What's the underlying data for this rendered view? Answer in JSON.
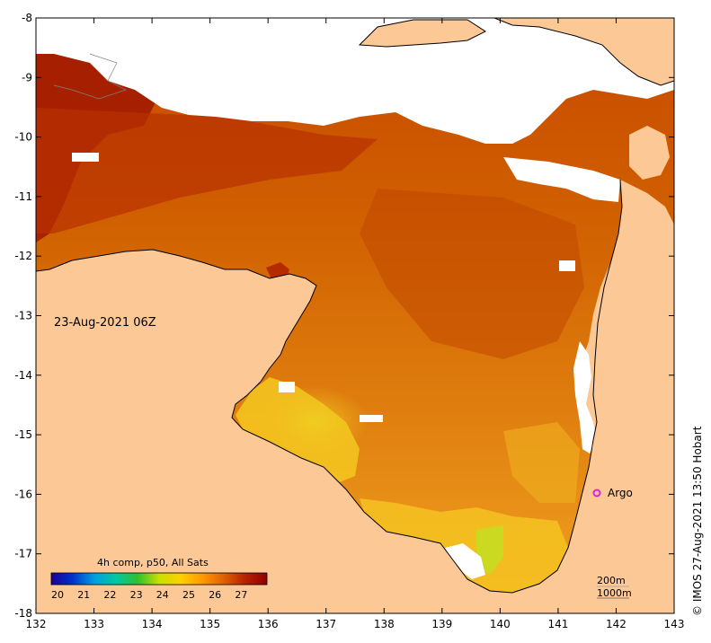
{
  "map": {
    "date_label": "23-Aug-2021 06Z",
    "colorbar_title": "4h comp, p50, All Sats",
    "colorbar_ticks": [
      "20",
      "21",
      "22",
      "23",
      "24",
      "25",
      "26",
      "27"
    ],
    "colorbar_stops": [
      "#1a0099",
      "#0033cc",
      "#00a0e0",
      "#00c8a0",
      "#30c030",
      "#c8e000",
      "#ffd000",
      "#ff9900",
      "#e06000",
      "#b82000",
      "#900000"
    ],
    "x_ticks": [
      "132",
      "133",
      "134",
      "135",
      "136",
      "137",
      "138",
      "139",
      "140",
      "141",
      "142",
      "143"
    ],
    "y_ticks": [
      "-8",
      "-9",
      "-10",
      "-11",
      "-12",
      "-13",
      "-14",
      "-15",
      "-16",
      "-17",
      "-18"
    ],
    "argo_label": "Argo",
    "argo_color": "#e020e0",
    "depth_label_1": "200m",
    "depth_label_2": "1000m",
    "credit": "© IMOS 27-Aug-2021 13:50 Hobart",
    "land_color": "#fcc896",
    "cloud_color": "#ffffff"
  }
}
